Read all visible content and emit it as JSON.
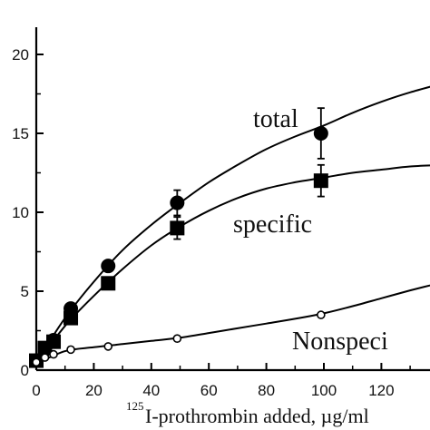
{
  "chart_data": {
    "type": "line",
    "title": "",
    "xlabel_superscript": "125",
    "xlabel": "I-prothrombin added, µg/ml",
    "ylabel": "",
    "xlim": [
      -1,
      142
    ],
    "ylim": [
      0,
      22
    ],
    "x_ticks": [
      0,
      20,
      40,
      60,
      80,
      100,
      120
    ],
    "y_ticks": [
      0,
      5,
      10,
      15,
      20
    ],
    "grid": false,
    "legend": "none",
    "series": [
      {
        "name": "total",
        "marker": "circle-filled",
        "points": [
          [
            0,
            0.6
          ],
          [
            3,
            1.3
          ],
          [
            6,
            1.9
          ],
          [
            12,
            3.9
          ],
          [
            25,
            6.6
          ],
          [
            49,
            10.6
          ],
          [
            99,
            15.0
          ]
        ],
        "errors": [
          0,
          0,
          0,
          0,
          0,
          0.8,
          1.6
        ],
        "curve": [
          [
            0,
            0.5
          ],
          [
            10,
            3.3
          ],
          [
            20,
            5.6
          ],
          [
            30,
            7.6
          ],
          [
            40,
            9.2
          ],
          [
            50,
            10.6
          ],
          [
            60,
            11.9
          ],
          [
            70,
            13.0
          ],
          [
            80,
            14.0
          ],
          [
            90,
            14.8
          ],
          [
            100,
            15.5
          ],
          [
            110,
            16.3
          ],
          [
            120,
            17.0
          ],
          [
            130,
            17.6
          ],
          [
            142,
            18.2
          ]
        ]
      },
      {
        "name": "specific",
        "marker": "square-filled",
        "points": [
          [
            0,
            0.6
          ],
          [
            3,
            1.4
          ],
          [
            6,
            1.8
          ],
          [
            12,
            3.3
          ],
          [
            25,
            5.5
          ],
          [
            49,
            9.0
          ],
          [
            99,
            12.0
          ]
        ],
        "errors": [
          0,
          0,
          0,
          0,
          0,
          0.7,
          1.0
        ],
        "curve": [
          [
            0,
            0.4
          ],
          [
            10,
            2.8
          ],
          [
            20,
            4.7
          ],
          [
            30,
            6.4
          ],
          [
            40,
            7.9
          ],
          [
            50,
            9.1
          ],
          [
            60,
            10.1
          ],
          [
            70,
            10.9
          ],
          [
            80,
            11.5
          ],
          [
            90,
            11.9
          ],
          [
            100,
            12.2
          ],
          [
            110,
            12.5
          ],
          [
            120,
            12.7
          ],
          [
            130,
            12.9
          ],
          [
            142,
            13.0
          ]
        ]
      },
      {
        "name": "Nonspeci",
        "marker": "circle-open",
        "points": [
          [
            0,
            0.5
          ],
          [
            3,
            0.8
          ],
          [
            6,
            1.0
          ],
          [
            12,
            1.3
          ],
          [
            25,
            1.5
          ],
          [
            49,
            2.0
          ],
          [
            99,
            3.5
          ]
        ],
        "errors": [
          0,
          0,
          0,
          0,
          0,
          0,
          0
        ],
        "curve": [
          [
            0,
            0.4
          ],
          [
            10,
            1.2
          ],
          [
            20,
            1.45
          ],
          [
            30,
            1.65
          ],
          [
            40,
            1.85
          ],
          [
            50,
            2.05
          ],
          [
            60,
            2.35
          ],
          [
            70,
            2.65
          ],
          [
            80,
            2.95
          ],
          [
            90,
            3.25
          ],
          [
            100,
            3.6
          ],
          [
            110,
            4.05
          ],
          [
            120,
            4.55
          ],
          [
            130,
            5.05
          ],
          [
            142,
            5.6
          ]
        ]
      }
    ]
  }
}
